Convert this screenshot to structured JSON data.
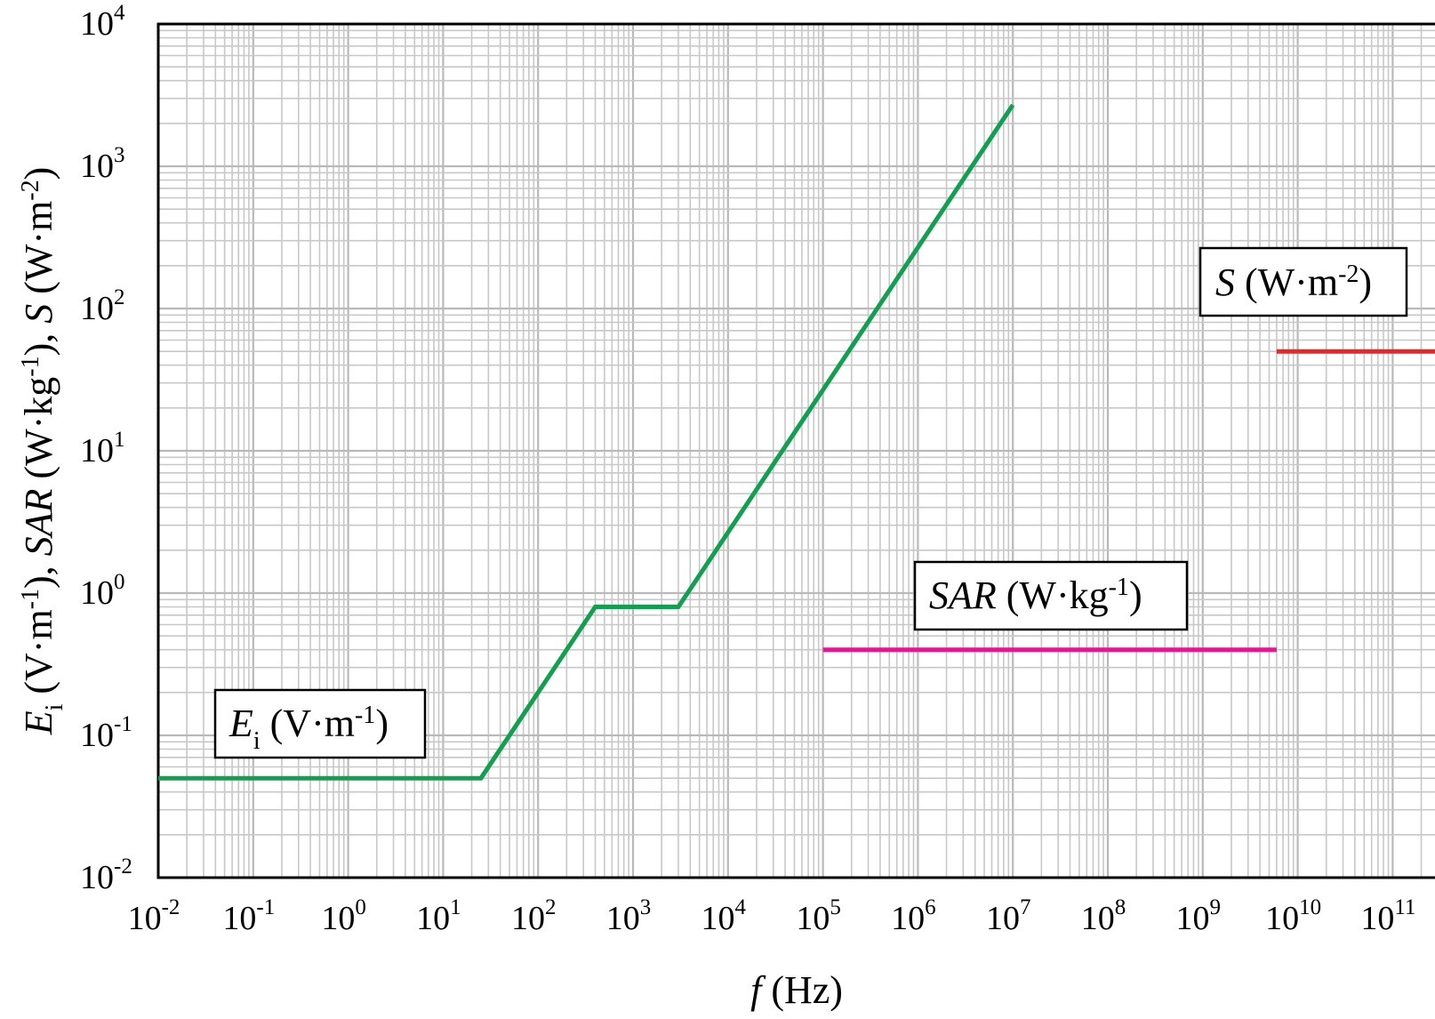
{
  "chart_data": {
    "type": "line",
    "x_scale": "log",
    "y_scale": "log",
    "xlim": [
      0.01,
      1000000000000.0
    ],
    "ylim": [
      0.01,
      10000
    ],
    "grid": true,
    "x_ticks": [
      {
        "value": 0.01,
        "base": "10",
        "exp": "-2"
      },
      {
        "value": 0.1,
        "base": "10",
        "exp": "-1"
      },
      {
        "value": 1,
        "base": "10",
        "exp": "0"
      },
      {
        "value": 10,
        "base": "10",
        "exp": "1"
      },
      {
        "value": 100,
        "base": "10",
        "exp": "2"
      },
      {
        "value": 1000,
        "base": "10",
        "exp": "3"
      },
      {
        "value": 10000,
        "base": "10",
        "exp": "4"
      },
      {
        "value": 100000,
        "base": "10",
        "exp": "5"
      },
      {
        "value": 1000000,
        "base": "10",
        "exp": "6"
      },
      {
        "value": 10000000,
        "base": "10",
        "exp": "7"
      },
      {
        "value": 100000000,
        "base": "10",
        "exp": "8"
      },
      {
        "value": 1000000000,
        "base": "10",
        "exp": "9"
      },
      {
        "value": 10000000000,
        "base": "10",
        "exp": "10"
      },
      {
        "value": 100000000000,
        "base": "10",
        "exp": "11"
      }
    ],
    "y_ticks": [
      {
        "value": 0.01,
        "base": "10",
        "exp": "-2"
      },
      {
        "value": 0.1,
        "base": "10",
        "exp": "-1"
      },
      {
        "value": 1,
        "base": "10",
        "exp": "0"
      },
      {
        "value": 10,
        "base": "10",
        "exp": "1"
      },
      {
        "value": 100,
        "base": "10",
        "exp": "2"
      },
      {
        "value": 1000,
        "base": "10",
        "exp": "3"
      },
      {
        "value": 10000,
        "base": "10",
        "exp": "4"
      }
    ],
    "xlabel": {
      "var": "f",
      "unit": "(Hz)"
    },
    "ylabel": {
      "parts": [
        {
          "text": "E",
          "style": "italic"
        },
        {
          "text": "i",
          "style": "sub"
        },
        {
          "text": " (V·m",
          "style": "normal"
        },
        {
          "text": "-1",
          "style": "sup"
        },
        {
          "text": "), ",
          "style": "normal"
        },
        {
          "text": "SAR",
          "style": "italic"
        },
        {
          "text": " (W·kg",
          "style": "normal"
        },
        {
          "text": "-1",
          "style": "sup"
        },
        {
          "text": "), ",
          "style": "normal"
        },
        {
          "text": "S",
          "style": "italic"
        },
        {
          "text": " (W·m",
          "style": "normal"
        },
        {
          "text": "-2",
          "style": "sup"
        },
        {
          "text": ")",
          "style": "normal"
        }
      ]
    },
    "series": [
      {
        "name": "Ei (V·m-1)",
        "color": "#12a050",
        "points": [
          [
            0.01,
            0.05
          ],
          [
            25,
            0.05
          ],
          [
            400,
            0.8
          ],
          [
            3000,
            0.8
          ],
          [
            10000000,
            2700
          ]
        ]
      },
      {
        "name": "SAR (W·kg-1)",
        "color": "#e8168a",
        "points": [
          [
            100000,
            0.4
          ],
          [
            6000000000,
            0.4
          ]
        ]
      },
      {
        "name": "S (W·m-2)",
        "color": "#e8262a",
        "points": [
          [
            6000000000,
            50
          ],
          [
            1000000000000,
            50
          ]
        ]
      }
    ],
    "annotations": [
      {
        "id": "ei",
        "var": "E",
        "sub": "i",
        "unit_pre": " (V·m",
        "unit_exp": "-1",
        "unit_post": ")"
      },
      {
        "id": "sar",
        "var": "SAR",
        "sub": "",
        "unit_pre": " (W·kg",
        "unit_exp": "-1",
        "unit_post": ")"
      },
      {
        "id": "s",
        "var": "S",
        "sub": "",
        "unit_pre": " (W·m",
        "unit_exp": "-2",
        "unit_post": ")"
      }
    ]
  }
}
